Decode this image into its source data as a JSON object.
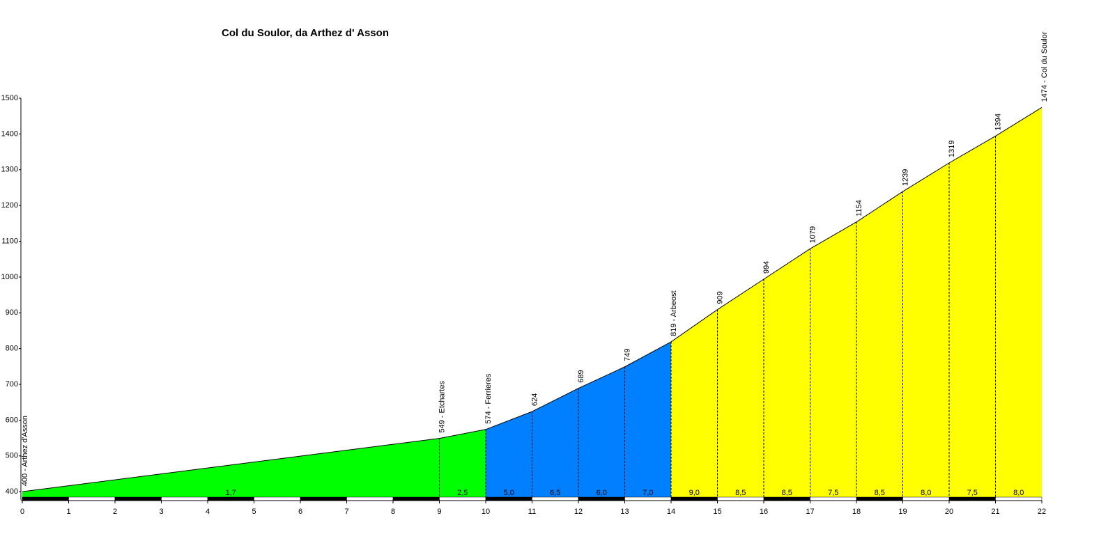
{
  "chart_data": {
    "type": "profile",
    "title": "Col du Soulor, da Arthez d' Asson",
    "x": [
      0,
      9,
      10,
      11,
      12,
      13,
      14,
      15,
      16,
      17,
      18,
      19,
      20,
      21,
      22
    ],
    "elevations": [
      400,
      549,
      574,
      624,
      689,
      749,
      819,
      909,
      994,
      1079,
      1154,
      1239,
      1319,
      1394,
      1474
    ],
    "point_labels": [
      "400 - Arthez d'Asson",
      "549 - Etchartes",
      "574 - Ferrieres",
      "624",
      "689",
      "749",
      "819 - Arbeost",
      "909",
      "994",
      "1079",
      "1154",
      "1239",
      "1319",
      "1394",
      "1474 - Col du Soulor"
    ],
    "gradients": {
      "values": [
        1.7,
        2.5,
        5.0,
        6.5,
        6.0,
        7.0,
        9.0,
        8.5,
        8.5,
        7.5,
        8.5,
        8.0,
        7.5,
        8.0
      ],
      "value_labels": [
        "1,7",
        "2,5",
        "5,0",
        "6,5",
        "6,0",
        "7,0",
        "9,0",
        "8,5",
        "8,5",
        "7,5",
        "8,5",
        "8,0",
        "7,5",
        "8,0"
      ],
      "colors": [
        "#00ff00",
        "#00ff00",
        "#0080ff",
        "#0080ff",
        "#0080ff",
        "#0080ff",
        "#ffff00",
        "#ffff00",
        "#ffff00",
        "#ffff00",
        "#ffff00",
        "#ffff00",
        "#ffff00",
        "#ffff00"
      ]
    },
    "xlim": [
      0,
      22
    ],
    "xticks": [
      0,
      1,
      2,
      3,
      4,
      5,
      6,
      7,
      8,
      9,
      10,
      11,
      12,
      13,
      14,
      15,
      16,
      17,
      18,
      19,
      20,
      21,
      22
    ],
    "ylim": [
      377,
      1500
    ],
    "yticks": [
      400,
      500,
      600,
      700,
      800,
      900,
      1000,
      1100,
      1200,
      1300,
      1400,
      1500
    ]
  }
}
